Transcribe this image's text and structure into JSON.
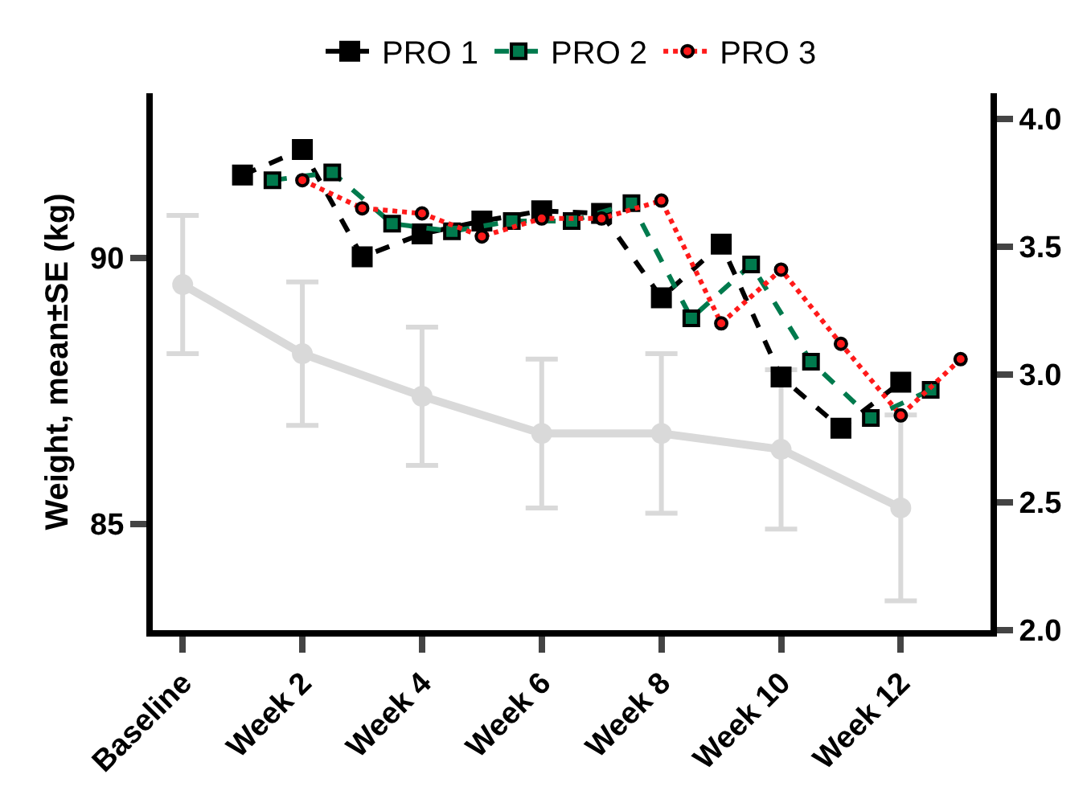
{
  "chart_data": {
    "type": "line",
    "ylabel": "Weight, mean±SE (kg)",
    "categories": [
      "Baseline",
      null,
      null,
      null,
      "Week 2",
      null,
      null,
      null,
      "Week 4",
      null,
      null,
      null,
      "Week 6",
      null,
      null,
      null,
      "Week 8",
      null,
      null,
      null,
      "Week 10",
      null,
      null,
      null,
      "Week 12",
      null,
      null
    ],
    "ylim": [
      83,
      93.1
    ],
    "yticks": [
      85,
      90
    ],
    "y2lim": [
      2.0,
      4.1
    ],
    "y2ticks": [
      {
        "value": 2,
        "label": "2.0"
      },
      {
        "value": 2.5,
        "label": "2.5"
      },
      {
        "value": 3,
        "label": "3.0"
      },
      {
        "value": 3.5,
        "label": "3.5"
      },
      {
        "value": 4,
        "label": "4.0"
      }
    ],
    "grid": false,
    "legend": "top",
    "series": [
      {
        "color": "#d9d9d9",
        "values": [
          89.5,
          null,
          null,
          null,
          88.2,
          null,
          null,
          null,
          87.4,
          null,
          null,
          null,
          86.7,
          null,
          null,
          null,
          86.7,
          null,
          null,
          null,
          86.4,
          null,
          null,
          null,
          85.3,
          null,
          null
        ],
        "errors": [
          1.3,
          null,
          null,
          null,
          1.35,
          null,
          null,
          null,
          1.3,
          null,
          null,
          null,
          1.4,
          null,
          null,
          null,
          1.5,
          null,
          null,
          null,
          1.5,
          null,
          null,
          null,
          1.75,
          null,
          null
        ],
        "marker": "circle",
        "line_style": "solid"
      },
      {
        "name": "PRO 1",
        "color": "#000000",
        "axis": "y2",
        "values": [
          null,
          null,
          3.78,
          null,
          3.88,
          null,
          3.46,
          null,
          3.55,
          null,
          3.6,
          null,
          3.64,
          null,
          3.63,
          null,
          3.3,
          null,
          3.51,
          null,
          2.99,
          null,
          2.79,
          null,
          2.97,
          null,
          null
        ],
        "marker": "square",
        "line_style": "dashed"
      },
      {
        "name": "PRO 2",
        "color": "#007a4d",
        "axis": "y2",
        "values": [
          null,
          null,
          null,
          3.76,
          null,
          3.79,
          null,
          3.59,
          null,
          3.56,
          null,
          3.6,
          null,
          3.6,
          null,
          3.67,
          null,
          3.22,
          null,
          3.43,
          null,
          3.05,
          null,
          2.83,
          null,
          2.94,
          null
        ],
        "marker": "square",
        "line_style": "dashed"
      },
      {
        "name": "PRO 3",
        "color": "#ff1a1a",
        "axis": "y2",
        "values": [
          null,
          null,
          null,
          null,
          3.76,
          null,
          3.65,
          null,
          3.63,
          null,
          3.54,
          null,
          3.61,
          null,
          3.61,
          null,
          3.68,
          null,
          3.2,
          null,
          3.41,
          null,
          3.12,
          null,
          2.84,
          null,
          3.06
        ],
        "marker": "circle",
        "line_style": "dotted"
      }
    ]
  }
}
